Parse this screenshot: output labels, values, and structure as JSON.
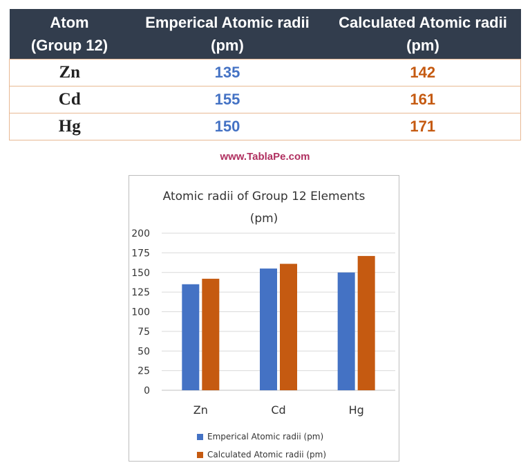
{
  "table": {
    "headers": [
      [
        "Atom",
        "(Group 12)"
      ],
      [
        "Emperical Atomic radii",
        "(pm)"
      ],
      [
        "Calculated Atomic radii",
        "(pm)"
      ]
    ],
    "rows": [
      {
        "atom": "Zn",
        "empirical": "135",
        "calculated": "142"
      },
      {
        "atom": "Cd",
        "empirical": "155",
        "calculated": "161"
      },
      {
        "atom": "Hg",
        "empirical": "150",
        "calculated": "171"
      }
    ]
  },
  "watermark": "www.TablaPe.com",
  "colors": {
    "header_bg": "#323d4d",
    "empirical": "#4472c4",
    "calculated": "#c55a11",
    "watermark": "#b03060"
  },
  "chart_data": {
    "type": "bar",
    "title_lines": [
      "Atomic radii of Group 12 Elements",
      "(pm)"
    ],
    "categories": [
      "Zn",
      "Cd",
      "Hg"
    ],
    "series": [
      {
        "name": "Emperical Atomic radii (pm)",
        "values": [
          135,
          155,
          150
        ],
        "color": "#4472c4"
      },
      {
        "name": "Calculated Atomic radii (pm)",
        "values": [
          142,
          161,
          171
        ],
        "color": "#c55a11"
      }
    ],
    "ylim": [
      0,
      200
    ],
    "yticks": [
      0,
      25,
      50,
      75,
      100,
      125,
      150,
      175,
      200
    ],
    "grid": true,
    "legend_position": "bottom"
  }
}
